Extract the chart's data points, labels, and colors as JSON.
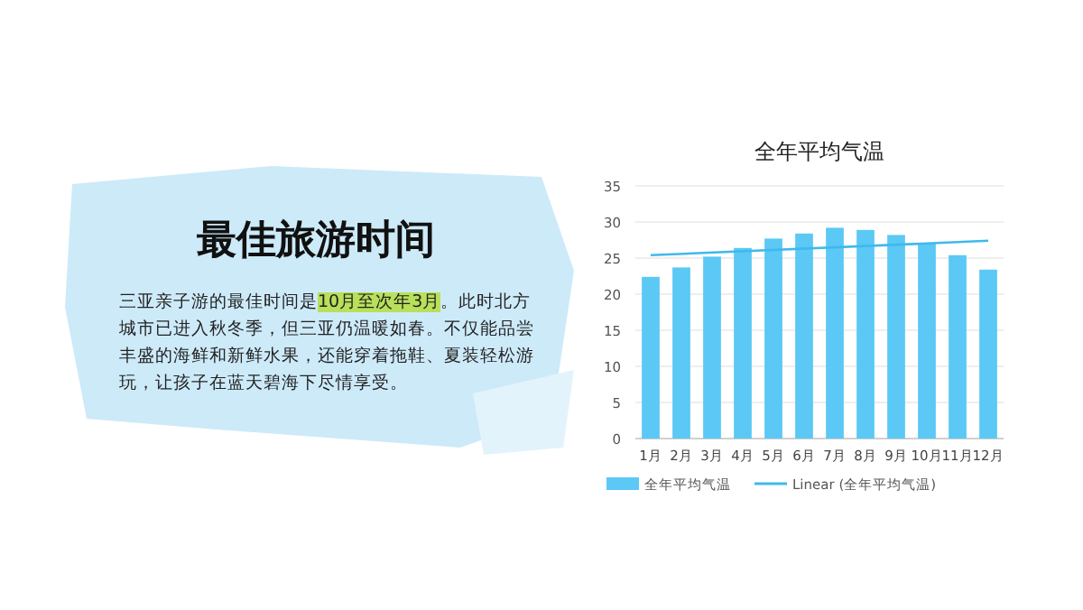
{
  "chart_data": [
    {
      "type": "other",
      "title": "最佳旅游时间",
      "annotations": [
        "三亚亲子游的最佳时间是",
        "10月至次年3月",
        "。此时北方城市已进入秋冬季，但三亚仍温暖如春。不仅能品尝丰盛的海鲜和新鲜水果，还能穿着拖鞋、夏装轻松游玩，让孩子在蓝天碧海下尽情享受。"
      ]
    },
    {
      "type": "bar",
      "title": "全年平均气温",
      "categories": [
        "1月",
        "2月",
        "3月",
        "4月",
        "5月",
        "6月",
        "7月",
        "8月",
        "9月",
        "10月",
        "11月",
        "12月"
      ],
      "series": [
        {
          "name": "全年平均气温",
          "color": "#5bc8f5",
          "values": [
            22.4,
            23.7,
            25.2,
            26.4,
            27.7,
            28.4,
            29.2,
            28.9,
            28.2,
            27.0,
            25.4,
            23.4
          ]
        },
        {
          "name": "Linear (全年平均气温)",
          "type": "line",
          "color": "#3fb9ec",
          "x": [
            "1月",
            "12月"
          ],
          "values": [
            25.4,
            27.4
          ]
        }
      ],
      "ylim": [
        0,
        35
      ],
      "yticks": [
        0,
        5,
        10,
        15,
        20,
        25,
        30,
        35
      ],
      "grid": "y",
      "legend": "bottom"
    }
  ]
}
